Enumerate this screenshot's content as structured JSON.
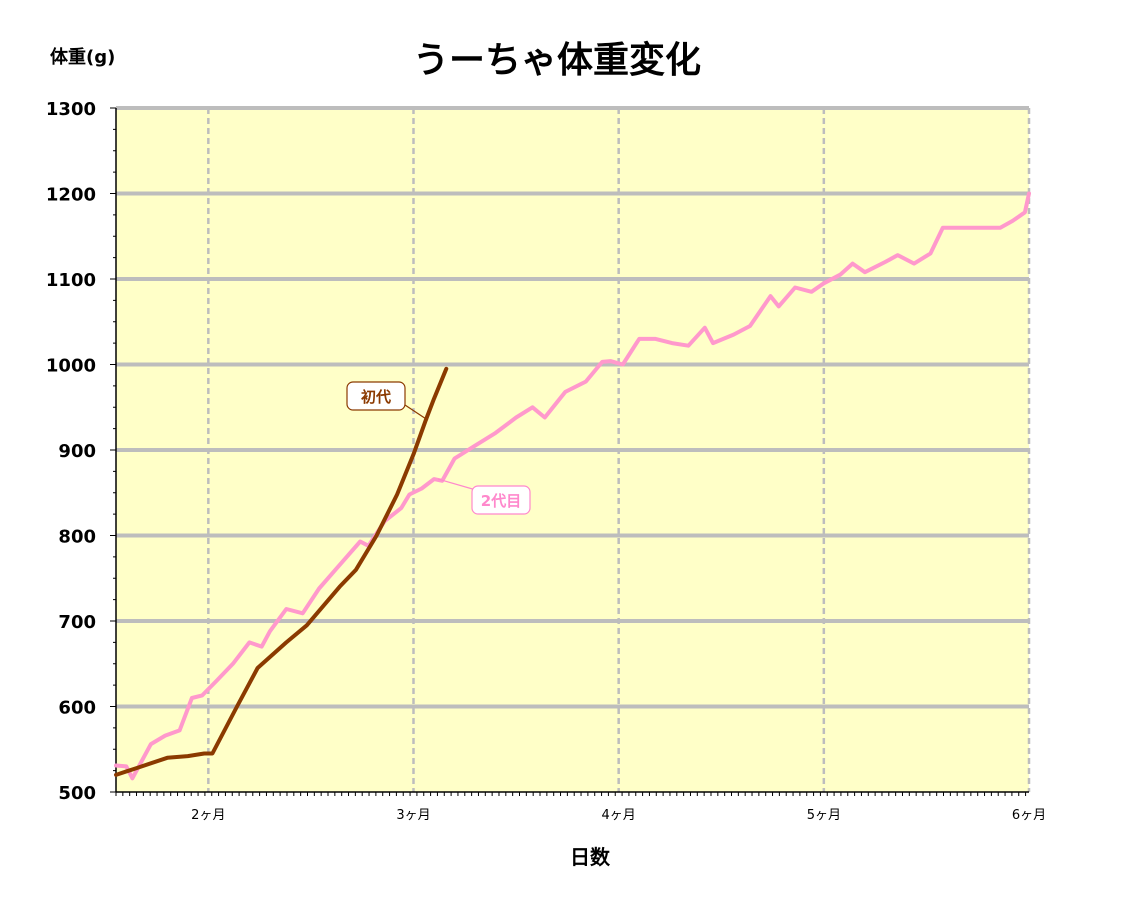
{
  "chart_data": {
    "type": "line",
    "title": "うーちゃ体重変化",
    "ylabel": "体重(g)",
    "xlabel": "日数",
    "ylim": [
      500,
      1300
    ],
    "yticks": [
      "500",
      "600",
      "700",
      "800",
      "900",
      "1000",
      "1100",
      "1200",
      "1300"
    ],
    "xlim": [
      1.55,
      6.0
    ],
    "xticks": [
      {
        "x": 2,
        "label": "2ヶ月"
      },
      {
        "x": 3,
        "label": "3ヶ月"
      },
      {
        "x": 4,
        "label": "4ヶ月"
      },
      {
        "x": 5,
        "label": "5ヶ月"
      },
      {
        "x": 6,
        "label": "6ヶ月"
      }
    ],
    "grid": true,
    "background_color": "#ffffc8",
    "series": [
      {
        "name": "初代",
        "color": "#8b3a00",
        "points": [
          [
            1.55,
            520
          ],
          [
            1.65,
            528
          ],
          [
            1.8,
            540
          ],
          [
            1.9,
            542
          ],
          [
            1.98,
            545
          ],
          [
            2.02,
            545
          ],
          [
            2.14,
            600
          ],
          [
            2.24,
            645
          ],
          [
            2.38,
            675
          ],
          [
            2.48,
            695
          ],
          [
            2.64,
            740
          ],
          [
            2.72,
            760
          ],
          [
            2.82,
            800
          ],
          [
            2.92,
            848
          ],
          [
            3.0,
            895
          ],
          [
            3.06,
            935
          ],
          [
            3.1,
            960
          ],
          [
            3.16,
            995
          ]
        ]
      },
      {
        "name": "2代目",
        "color": "#ff99cc",
        "points": [
          [
            1.55,
            531
          ],
          [
            1.6,
            530
          ],
          [
            1.63,
            516
          ],
          [
            1.72,
            556
          ],
          [
            1.79,
            566
          ],
          [
            1.86,
            572
          ],
          [
            1.92,
            610
          ],
          [
            1.97,
            613
          ],
          [
            2.04,
            630
          ],
          [
            2.12,
            650
          ],
          [
            2.2,
            675
          ],
          [
            2.26,
            670
          ],
          [
            2.3,
            688
          ],
          [
            2.38,
            714
          ],
          [
            2.46,
            709
          ],
          [
            2.54,
            738
          ],
          [
            2.62,
            760
          ],
          [
            2.74,
            793
          ],
          [
            2.78,
            788
          ],
          [
            2.86,
            817
          ],
          [
            2.94,
            832
          ],
          [
            2.98,
            848
          ],
          [
            3.04,
            855
          ],
          [
            3.1,
            866
          ],
          [
            3.14,
            864
          ],
          [
            3.2,
            890
          ],
          [
            3.3,
            905
          ],
          [
            3.4,
            920
          ],
          [
            3.5,
            938
          ],
          [
            3.58,
            950
          ],
          [
            3.64,
            938
          ],
          [
            3.74,
            968
          ],
          [
            3.84,
            980
          ],
          [
            3.92,
            1003
          ],
          [
            3.96,
            1004
          ],
          [
            4.02,
            1000
          ],
          [
            4.1,
            1030
          ],
          [
            4.18,
            1030
          ],
          [
            4.26,
            1025
          ],
          [
            4.34,
            1022
          ],
          [
            4.42,
            1043
          ],
          [
            4.46,
            1025
          ],
          [
            4.56,
            1035
          ],
          [
            4.64,
            1045
          ],
          [
            4.74,
            1080
          ],
          [
            4.78,
            1068
          ],
          [
            4.86,
            1090
          ],
          [
            4.94,
            1085
          ],
          [
            5.0,
            1095
          ],
          [
            5.08,
            1105
          ],
          [
            5.14,
            1118
          ],
          [
            5.2,
            1108
          ],
          [
            5.3,
            1120
          ],
          [
            5.36,
            1128
          ],
          [
            5.44,
            1118
          ],
          [
            5.52,
            1130
          ],
          [
            5.58,
            1160
          ],
          [
            5.86,
            1160
          ],
          [
            5.92,
            1168
          ],
          [
            5.98,
            1178
          ],
          [
            6.0,
            1200
          ]
        ]
      }
    ],
    "annotations": [
      {
        "series": "初代",
        "text": "初代",
        "color": "#8b3a00"
      },
      {
        "series": "2代目",
        "text": "2代目",
        "color": "#ff88cc"
      }
    ]
  }
}
